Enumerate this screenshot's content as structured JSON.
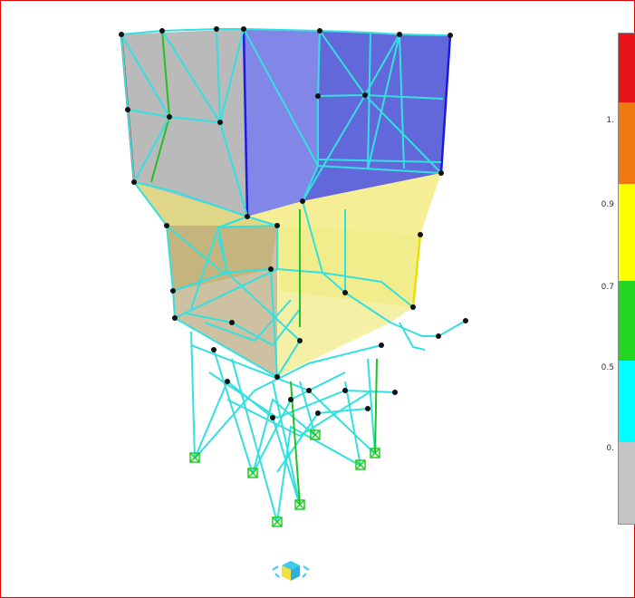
{
  "viewport": {
    "background": "#ffffff",
    "frame_color": "#e00000",
    "view_cube_icon": "view-cube-icon",
    "support_icon": "fixed-support-icon",
    "members_color": "#33e0e0",
    "joint_color": "#111111"
  },
  "legend": {
    "ticks": [
      "1.",
      "0.9",
      "0.7",
      "0.5",
      "0."
    ],
    "bands": [
      {
        "color": "#e8121a"
      },
      {
        "color": "#f07a0f"
      },
      {
        "color": "#ffff00"
      },
      {
        "color": "#22d622"
      },
      {
        "color": "#00ffff"
      },
      {
        "color": "#c4c4c4"
      }
    ]
  }
}
